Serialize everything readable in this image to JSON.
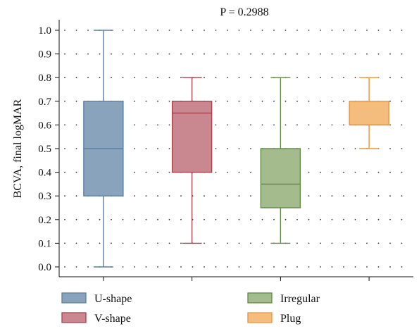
{
  "chart_data": {
    "type": "box",
    "title": "P = 0.2988",
    "ylabel": "BCVA, final logMAR",
    "xlabel": "",
    "ylim": [
      0.0,
      1.0
    ],
    "yticks": [
      "0.0",
      "0.1",
      "0.2",
      "0.3",
      "0.4",
      "0.5",
      "0.6",
      "0.7",
      "0.8",
      "0.9",
      "1.0"
    ],
    "grid": "dotted",
    "legend_position": "bottom",
    "series": [
      {
        "name": "U-shape",
        "color": "#5b7fa3",
        "fill": "#8aa3bd",
        "min": 0.0,
        "q1": 0.3,
        "median": 0.5,
        "q3": 0.7,
        "max": 1.0
      },
      {
        "name": "V-shape",
        "color": "#a8414e",
        "fill": "#c9888f",
        "min": 0.1,
        "q1": 0.4,
        "median": 0.65,
        "q3": 0.7,
        "max": 0.8
      },
      {
        "name": "Irregular",
        "color": "#5f8a43",
        "fill": "#a3bb8d",
        "min": 0.1,
        "q1": 0.25,
        "median": 0.35,
        "q3": 0.5,
        "max": 0.8
      },
      {
        "name": "Plug",
        "color": "#e8953a",
        "fill": "#f4bd7e",
        "min": 0.5,
        "q1": 0.6,
        "median": 0.6,
        "q3": 0.7,
        "max": 0.8
      }
    ]
  }
}
